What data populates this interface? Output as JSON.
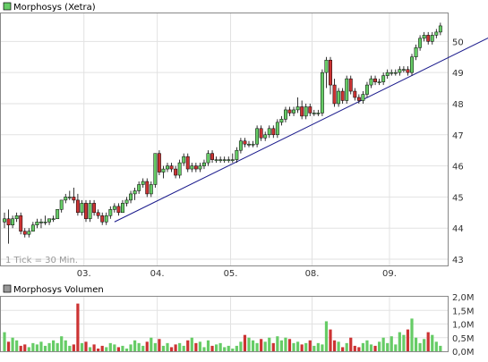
{
  "chart_data": [
    {
      "type": "candlestick",
      "title": "Morphosys (Xetra)",
      "note": "1 Tick = 30 Min.",
      "x_tick_labels": [
        "03.",
        "04.",
        "05.",
        "08.",
        "09."
      ],
      "y_ticks": [
        43,
        44,
        45,
        46,
        47,
        48,
        49,
        50
      ],
      "ylim": [
        42.8,
        50.9
      ],
      "grid": true,
      "legend": "top-left",
      "colors": {
        "up": "#66cc66",
        "down": "#cc3333",
        "wick": "#000000",
        "trend": "#1a1a8c"
      },
      "trendline": [
        {
          "t": 27,
          "y": 44.2
        },
        {
          "t": 124,
          "y": 50.45
        }
      ],
      "candles": [
        [
          44.2,
          44.5,
          44.0,
          44.3
        ],
        [
          44.3,
          44.6,
          43.5,
          44.1
        ],
        [
          44.1,
          44.4,
          44.0,
          44.3
        ],
        [
          44.3,
          44.5,
          44.2,
          44.4
        ],
        [
          44.4,
          44.5,
          43.8,
          43.9
        ],
        [
          43.9,
          44.0,
          43.7,
          43.8
        ],
        [
          43.8,
          44.0,
          43.7,
          43.9
        ],
        [
          43.9,
          44.2,
          43.9,
          44.1
        ],
        [
          44.1,
          44.3,
          44.0,
          44.2
        ],
        [
          44.2,
          44.3,
          44.0,
          44.2
        ],
        [
          44.2,
          44.4,
          44.1,
          44.2
        ],
        [
          44.2,
          44.3,
          44.1,
          44.3
        ],
        [
          44.3,
          44.4,
          44.2,
          44.3
        ],
        [
          44.3,
          44.6,
          44.3,
          44.6
        ],
        [
          44.6,
          44.9,
          44.5,
          44.9
        ],
        [
          44.9,
          45.1,
          44.8,
          45.0
        ],
        [
          45.0,
          45.2,
          44.9,
          45.0
        ],
        [
          45.0,
          45.3,
          44.8,
          44.9
        ],
        [
          44.9,
          45.1,
          44.4,
          44.5
        ],
        [
          44.5,
          44.9,
          44.4,
          44.8
        ],
        [
          44.8,
          44.9,
          44.2,
          44.3
        ],
        [
          44.3,
          44.9,
          44.2,
          44.8
        ],
        [
          44.8,
          44.9,
          44.4,
          44.5
        ],
        [
          44.5,
          44.6,
          44.3,
          44.4
        ],
        [
          44.4,
          44.5,
          44.1,
          44.2
        ],
        [
          44.2,
          44.5,
          44.1,
          44.4
        ],
        [
          44.4,
          44.7,
          44.3,
          44.6
        ],
        [
          44.6,
          44.8,
          44.5,
          44.7
        ],
        [
          44.7,
          44.8,
          44.4,
          44.5
        ],
        [
          44.5,
          44.9,
          44.5,
          44.8
        ],
        [
          44.8,
          45.0,
          44.7,
          44.9
        ],
        [
          44.9,
          45.2,
          44.8,
          45.1
        ],
        [
          45.1,
          45.3,
          44.9,
          45.2
        ],
        [
          45.2,
          45.5,
          45.1,
          45.4
        ],
        [
          45.4,
          45.6,
          45.3,
          45.5
        ],
        [
          45.5,
          45.6,
          45.0,
          45.1
        ],
        [
          45.1,
          45.5,
          45.0,
          45.4
        ],
        [
          45.4,
          46.4,
          45.3,
          46.4
        ],
        [
          46.4,
          46.5,
          45.7,
          45.8
        ],
        [
          45.8,
          46.0,
          45.6,
          45.9
        ],
        [
          45.9,
          46.1,
          45.8,
          46.0
        ],
        [
          46.0,
          46.1,
          45.8,
          45.9
        ],
        [
          45.9,
          46.0,
          45.6,
          45.7
        ],
        [
          45.7,
          46.2,
          45.6,
          46.1
        ],
        [
          46.1,
          46.4,
          46.0,
          46.3
        ],
        [
          46.3,
          46.4,
          45.8,
          45.9
        ],
        [
          45.9,
          46.1,
          45.8,
          46.0
        ],
        [
          46.0,
          46.1,
          45.8,
          45.9
        ],
        [
          45.9,
          46.1,
          45.8,
          46.0
        ],
        [
          46.0,
          46.2,
          45.9,
          46.1
        ],
        [
          46.1,
          46.5,
          46.0,
          46.4
        ],
        [
          46.4,
          46.5,
          46.1,
          46.2
        ],
        [
          46.2,
          46.3,
          46.1,
          46.2
        ],
        [
          46.2,
          46.3,
          46.1,
          46.2
        ],
        [
          46.2,
          46.3,
          46.1,
          46.2
        ],
        [
          46.2,
          46.3,
          46.1,
          46.2
        ],
        [
          46.2,
          46.4,
          46.1,
          46.2
        ],
        [
          46.2,
          46.6,
          46.1,
          46.5
        ],
        [
          46.5,
          46.9,
          46.4,
          46.8
        ],
        [
          46.8,
          46.9,
          46.6,
          46.7
        ],
        [
          46.7,
          46.8,
          46.6,
          46.7
        ],
        [
          46.7,
          46.8,
          46.6,
          46.7
        ],
        [
          46.7,
          47.3,
          46.6,
          47.2
        ],
        [
          47.2,
          47.3,
          46.8,
          46.9
        ],
        [
          46.9,
          47.1,
          46.8,
          47.0
        ],
        [
          47.0,
          47.3,
          46.9,
          47.2
        ],
        [
          47.2,
          47.3,
          46.9,
          47.0
        ],
        [
          47.0,
          47.5,
          46.9,
          47.4
        ],
        [
          47.4,
          47.6,
          47.3,
          47.5
        ],
        [
          47.5,
          47.9,
          47.4,
          47.8
        ],
        [
          47.8,
          47.9,
          47.6,
          47.7
        ],
        [
          47.7,
          47.9,
          47.6,
          47.8
        ],
        [
          47.8,
          48.2,
          47.7,
          47.9
        ],
        [
          47.9,
          48.1,
          47.5,
          47.6
        ],
        [
          47.6,
          48.0,
          47.5,
          47.9
        ],
        [
          47.9,
          48.0,
          47.6,
          47.7
        ],
        [
          47.7,
          47.8,
          47.6,
          47.7
        ],
        [
          47.7,
          47.8,
          47.6,
          47.7
        ],
        [
          47.7,
          49.1,
          47.6,
          49.0
        ],
        [
          49.0,
          49.5,
          48.5,
          49.4
        ],
        [
          49.4,
          49.5,
          48.3,
          48.6
        ],
        [
          48.6,
          48.8,
          47.9,
          48.0
        ],
        [
          48.0,
          48.5,
          47.9,
          48.4
        ],
        [
          48.4,
          48.5,
          48.0,
          48.1
        ],
        [
          48.1,
          48.9,
          48.0,
          48.8
        ],
        [
          48.8,
          48.9,
          48.3,
          48.4
        ],
        [
          48.4,
          48.5,
          48.1,
          48.2
        ],
        [
          48.2,
          48.3,
          48.0,
          48.1
        ],
        [
          48.1,
          48.4,
          48.0,
          48.3
        ],
        [
          48.3,
          48.7,
          48.2,
          48.6
        ],
        [
          48.6,
          48.9,
          48.5,
          48.8
        ],
        [
          48.8,
          48.9,
          48.6,
          48.7
        ],
        [
          48.7,
          48.8,
          48.6,
          48.7
        ],
        [
          48.7,
          49.0,
          48.6,
          48.9
        ],
        [
          48.9,
          49.1,
          48.8,
          49.0
        ],
        [
          49.0,
          49.1,
          48.9,
          49.0
        ],
        [
          49.0,
          49.1,
          48.9,
          49.0
        ],
        [
          49.0,
          49.2,
          48.9,
          49.1
        ],
        [
          49.1,
          49.2,
          49.0,
          49.1
        ],
        [
          49.1,
          49.2,
          48.9,
          49.0
        ],
        [
          49.0,
          49.6,
          48.9,
          49.5
        ],
        [
          49.5,
          49.9,
          49.4,
          49.8
        ],
        [
          49.8,
          50.2,
          49.7,
          50.1
        ],
        [
          50.1,
          50.3,
          50.0,
          50.2
        ],
        [
          50.2,
          50.3,
          49.9,
          50.0
        ],
        [
          50.0,
          50.3,
          49.9,
          50.2
        ],
        [
          50.2,
          50.4,
          50.1,
          50.3
        ],
        [
          50.3,
          50.6,
          50.2,
          50.5
        ]
      ]
    },
    {
      "type": "bar",
      "title": "Morphosys Volumen",
      "y_tick_labels": [
        "2,0M",
        "1,5M",
        "1,0M",
        "0,5M",
        "0,0M"
      ],
      "ylim": [
        0,
        2.0
      ],
      "unit": "M",
      "values": [
        0.7,
        0.35,
        0.5,
        0.4,
        0.2,
        0.25,
        0.15,
        0.3,
        0.25,
        0.35,
        0.2,
        0.3,
        0.4,
        0.3,
        0.55,
        0.4,
        0.2,
        0.25,
        1.75,
        0.3,
        0.35,
        0.15,
        0.25,
        0.1,
        0.2,
        0.15,
        0.3,
        0.25,
        0.15,
        0.2,
        0.1,
        0.25,
        0.4,
        0.3,
        0.2,
        0.35,
        0.5,
        0.3,
        0.45,
        0.2,
        0.3,
        0.15,
        0.25,
        0.3,
        0.2,
        0.4,
        0.5,
        0.3,
        0.35,
        0.15,
        0.4,
        0.2,
        0.25,
        0.3,
        0.15,
        0.2,
        0.1,
        0.2,
        0.35,
        0.6,
        0.5,
        0.4,
        0.3,
        0.45,
        0.35,
        0.5,
        0.3,
        0.55,
        0.4,
        0.5,
        0.45,
        0.3,
        0.35,
        0.25,
        0.3,
        0.4,
        0.2,
        0.3,
        0.25,
        1.1,
        0.8,
        0.4,
        0.35,
        0.15,
        0.3,
        0.5,
        0.2,
        0.15,
        0.3,
        0.4,
        0.25,
        0.2,
        0.35,
        0.5,
        0.3,
        0.55,
        0.25,
        0.7,
        0.6,
        0.8,
        1.2,
        0.5,
        0.3,
        0.45,
        0.7,
        0.6,
        0.35,
        0.2
      ]
    }
  ]
}
